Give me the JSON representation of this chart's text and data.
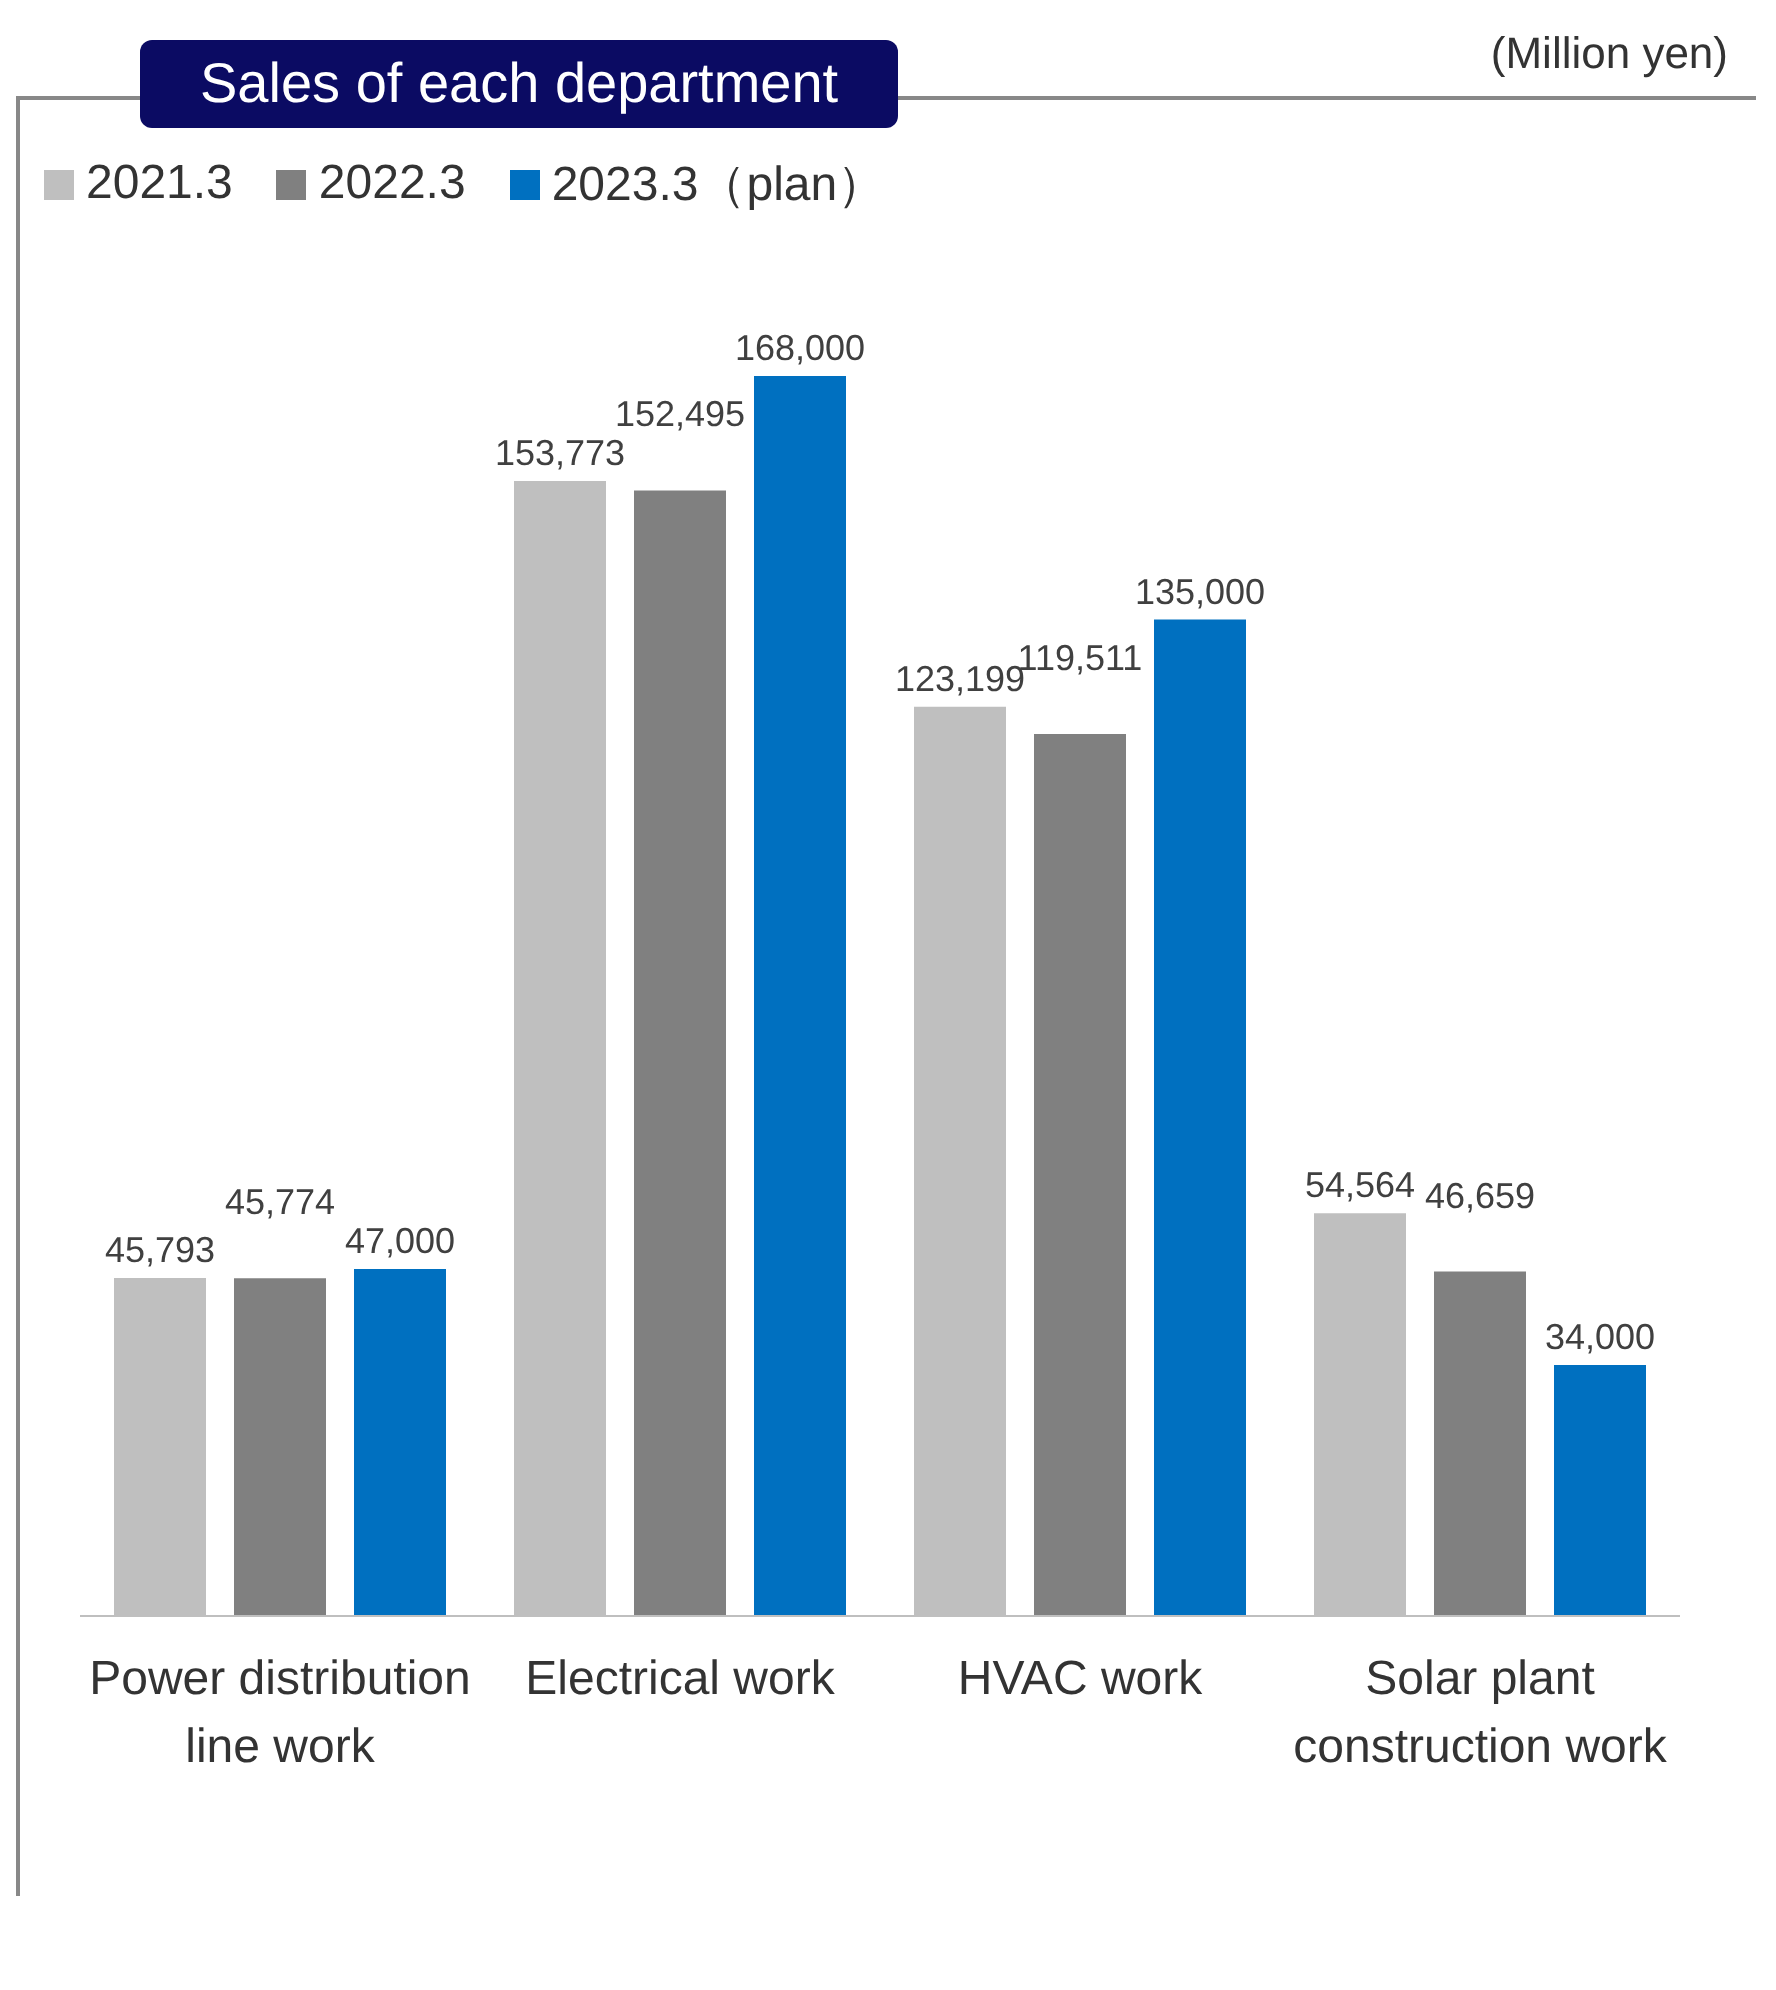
{
  "chart_data": {
    "type": "bar",
    "title": "Sales of each department",
    "annotations": [
      "(Million yen)"
    ],
    "categories": [
      "Power distribution line work",
      "Electrical work",
      "HVAC work",
      "Solar plant construction work"
    ],
    "series": [
      {
        "name": "2021.3",
        "color": "#bfbfbf",
        "values": [
          45793,
          153773,
          123199,
          54564
        ],
        "value_labels": [
          "45,793",
          "153,773",
          "123,199",
          "54,564"
        ]
      },
      {
        "name": "2022.3",
        "color": "#808080",
        "values": [
          45774,
          152495,
          119511,
          46659
        ],
        "value_labels": [
          "45,774",
          "152,495",
          "119,511",
          "46,659"
        ]
      },
      {
        "name": "2023.3（plan）",
        "color": "#0070c0",
        "values": [
          47000,
          168000,
          135000,
          34000
        ],
        "value_labels": [
          "47,000",
          "168,000",
          "135,000",
          "34,000"
        ]
      }
    ],
    "legend": "top left",
    "grid": false
  }
}
